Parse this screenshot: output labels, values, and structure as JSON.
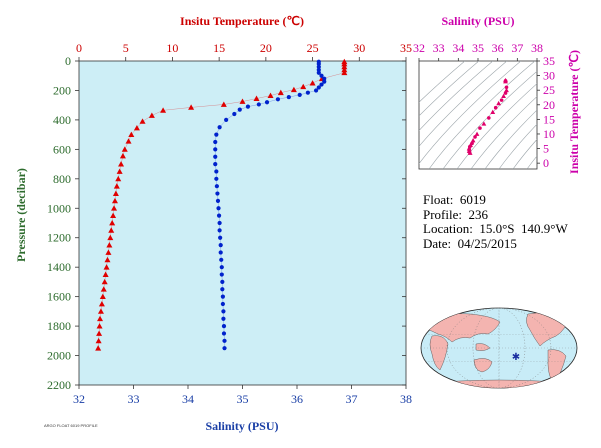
{
  "chart_data": [
    {
      "type": "scatter",
      "panel": "profile",
      "top_axis": {
        "label": "Insitu Temperature (℃)",
        "range": [
          0,
          35
        ],
        "ticks": [
          0,
          5,
          10,
          15,
          20,
          25,
          30,
          35
        ],
        "color": "#cc0000"
      },
      "bottom_axis": {
        "label": "Salinity (PSU)",
        "range": [
          32,
          38
        ],
        "ticks": [
          32,
          33,
          34,
          35,
          36,
          37,
          38
        ],
        "color": "#1a3fa6"
      },
      "y_axis": {
        "label": "Pressure (decibar)",
        "range": [
          0,
          2200
        ],
        "reversed": true,
        "ticks": [
          0,
          200,
          400,
          600,
          800,
          1000,
          1200,
          1400,
          1600,
          1800,
          2000,
          2200
        ],
        "color": "#2d6b2d"
      },
      "series": [
        {
          "marker": "triangle",
          "color": "#e00000",
          "x_axis": "top",
          "points": [
            [
              28.4,
              5
            ],
            [
              28.4,
              20
            ],
            [
              28.4,
              40
            ],
            [
              28.4,
              60
            ],
            [
              28.4,
              80
            ],
            [
              26.0,
              120
            ],
            [
              25.0,
              150
            ],
            [
              24.0,
              175
            ],
            [
              23.0,
              195
            ],
            [
              21.6,
              215
            ],
            [
              20.5,
              235
            ],
            [
              19.0,
              255
            ],
            [
              17.5,
              275
            ],
            [
              15.5,
              295
            ],
            [
              12.0,
              315
            ],
            [
              9.0,
              335
            ],
            [
              7.8,
              370
            ],
            [
              6.8,
              410
            ],
            [
              6.2,
              455
            ],
            [
              5.6,
              500
            ],
            [
              5.3,
              545
            ],
            [
              4.9,
              600
            ],
            [
              4.7,
              645
            ],
            [
              4.5,
              700
            ],
            [
              4.35,
              750
            ],
            [
              4.2,
              800
            ],
            [
              4.05,
              850
            ],
            [
              3.95,
              900
            ],
            [
              3.85,
              950
            ],
            [
              3.75,
              1000
            ],
            [
              3.65,
              1050
            ],
            [
              3.55,
              1100
            ],
            [
              3.45,
              1150
            ],
            [
              3.35,
              1200
            ],
            [
              3.25,
              1250
            ],
            [
              3.15,
              1300
            ],
            [
              3.05,
              1350
            ],
            [
              2.95,
              1400
            ],
            [
              2.85,
              1450
            ],
            [
              2.75,
              1500
            ],
            [
              2.65,
              1550
            ],
            [
              2.55,
              1600
            ],
            [
              2.45,
              1650
            ],
            [
              2.35,
              1700
            ],
            [
              2.25,
              1750
            ],
            [
              2.2,
              1800
            ],
            [
              2.15,
              1850
            ],
            [
              2.1,
              1900
            ],
            [
              2.05,
              1950
            ]
          ]
        },
        {
          "marker": "circle",
          "color": "#0022cc",
          "x_axis": "bottom",
          "points": [
            [
              36.4,
              5
            ],
            [
              36.4,
              20
            ],
            [
              36.4,
              40
            ],
            [
              36.4,
              60
            ],
            [
              36.4,
              80
            ],
            [
              36.45,
              100
            ],
            [
              36.5,
              120
            ],
            [
              36.5,
              140
            ],
            [
              36.45,
              160
            ],
            [
              36.4,
              180
            ],
            [
              36.35,
              200
            ],
            [
              36.2,
              215
            ],
            [
              36.05,
              230
            ],
            [
              35.85,
              245
            ],
            [
              35.65,
              260
            ],
            [
              35.45,
              280
            ],
            [
              35.3,
              295
            ],
            [
              35.1,
              310
            ],
            [
              34.95,
              330
            ],
            [
              34.85,
              360
            ],
            [
              34.7,
              400
            ],
            [
              34.58,
              450
            ],
            [
              34.52,
              500
            ],
            [
              34.5,
              550
            ],
            [
              34.5,
              600
            ],
            [
              34.5,
              650
            ],
            [
              34.5,
              700
            ],
            [
              34.52,
              750
            ],
            [
              34.52,
              800
            ],
            [
              34.53,
              850
            ],
            [
              34.54,
              900
            ],
            [
              34.55,
              950
            ],
            [
              34.56,
              1000
            ],
            [
              34.57,
              1050
            ],
            [
              34.58,
              1100
            ],
            [
              34.58,
              1150
            ],
            [
              34.59,
              1200
            ],
            [
              34.6,
              1250
            ],
            [
              34.6,
              1300
            ],
            [
              34.61,
              1350
            ],
            [
              34.62,
              1400
            ],
            [
              34.62,
              1450
            ],
            [
              34.63,
              1500
            ],
            [
              34.63,
              1550
            ],
            [
              34.64,
              1600
            ],
            [
              34.64,
              1650
            ],
            [
              34.65,
              1700
            ],
            [
              34.65,
              1750
            ],
            [
              34.66,
              1800
            ],
            [
              34.66,
              1850
            ],
            [
              34.67,
              1900
            ],
            [
              34.67,
              1950
            ]
          ]
        }
      ],
      "background": "#cdeef6"
    },
    {
      "type": "scatter",
      "panel": "ts_diagram",
      "x_axis": {
        "label": "Salinity (PSU)",
        "range": [
          32,
          38
        ],
        "ticks": [
          32,
          33,
          34,
          35,
          36,
          37,
          38
        ],
        "color": "#cc00aa"
      },
      "y_axis": {
        "label": "Insitu Temperature (℃)",
        "range": [
          -2,
          35
        ],
        "ticks": [
          0,
          5,
          10,
          15,
          20,
          25,
          30,
          35
        ],
        "color": "#cc00aa"
      },
      "series": [
        {
          "marker": "mixed",
          "color": "#e0006a",
          "points": [
            [
              36.4,
              28.4
            ],
            [
              36.4,
              28.2
            ],
            [
              36.4,
              28.0
            ],
            [
              36.45,
              26.0
            ],
            [
              36.45,
              25.0
            ],
            [
              36.4,
              24.0
            ],
            [
              36.3,
              23.0
            ],
            [
              36.2,
              21.6
            ],
            [
              36.05,
              20.5
            ],
            [
              35.9,
              19.0
            ],
            [
              35.75,
              17.5
            ],
            [
              35.55,
              15.5
            ],
            [
              35.3,
              13.5
            ],
            [
              35.1,
              12.0
            ],
            [
              34.95,
              10.0
            ],
            [
              34.85,
              9.0
            ],
            [
              34.75,
              7.8
            ],
            [
              34.7,
              6.8
            ],
            [
              34.62,
              6.2
            ],
            [
              34.58,
              5.6
            ],
            [
              34.55,
              5.0
            ],
            [
              34.55,
              4.6
            ],
            [
              34.55,
              4.2
            ],
            [
              34.57,
              3.8
            ],
            [
              34.6,
              3.5
            ]
          ]
        }
      ],
      "background": "#ffffff"
    }
  ],
  "float_info": {
    "float": "Float:  6019",
    "profile": "Profile:  236",
    "location": "Location:  15.0°S  140.9°W",
    "date": "Date:  04/25/2015"
  },
  "footer_text": "ARGO FLOAT 6019 PROFILE",
  "map": {
    "ocean_color": "#c8ecf7",
    "land_color": "#f4b4b0",
    "marker_color": "#1a2fa0"
  }
}
